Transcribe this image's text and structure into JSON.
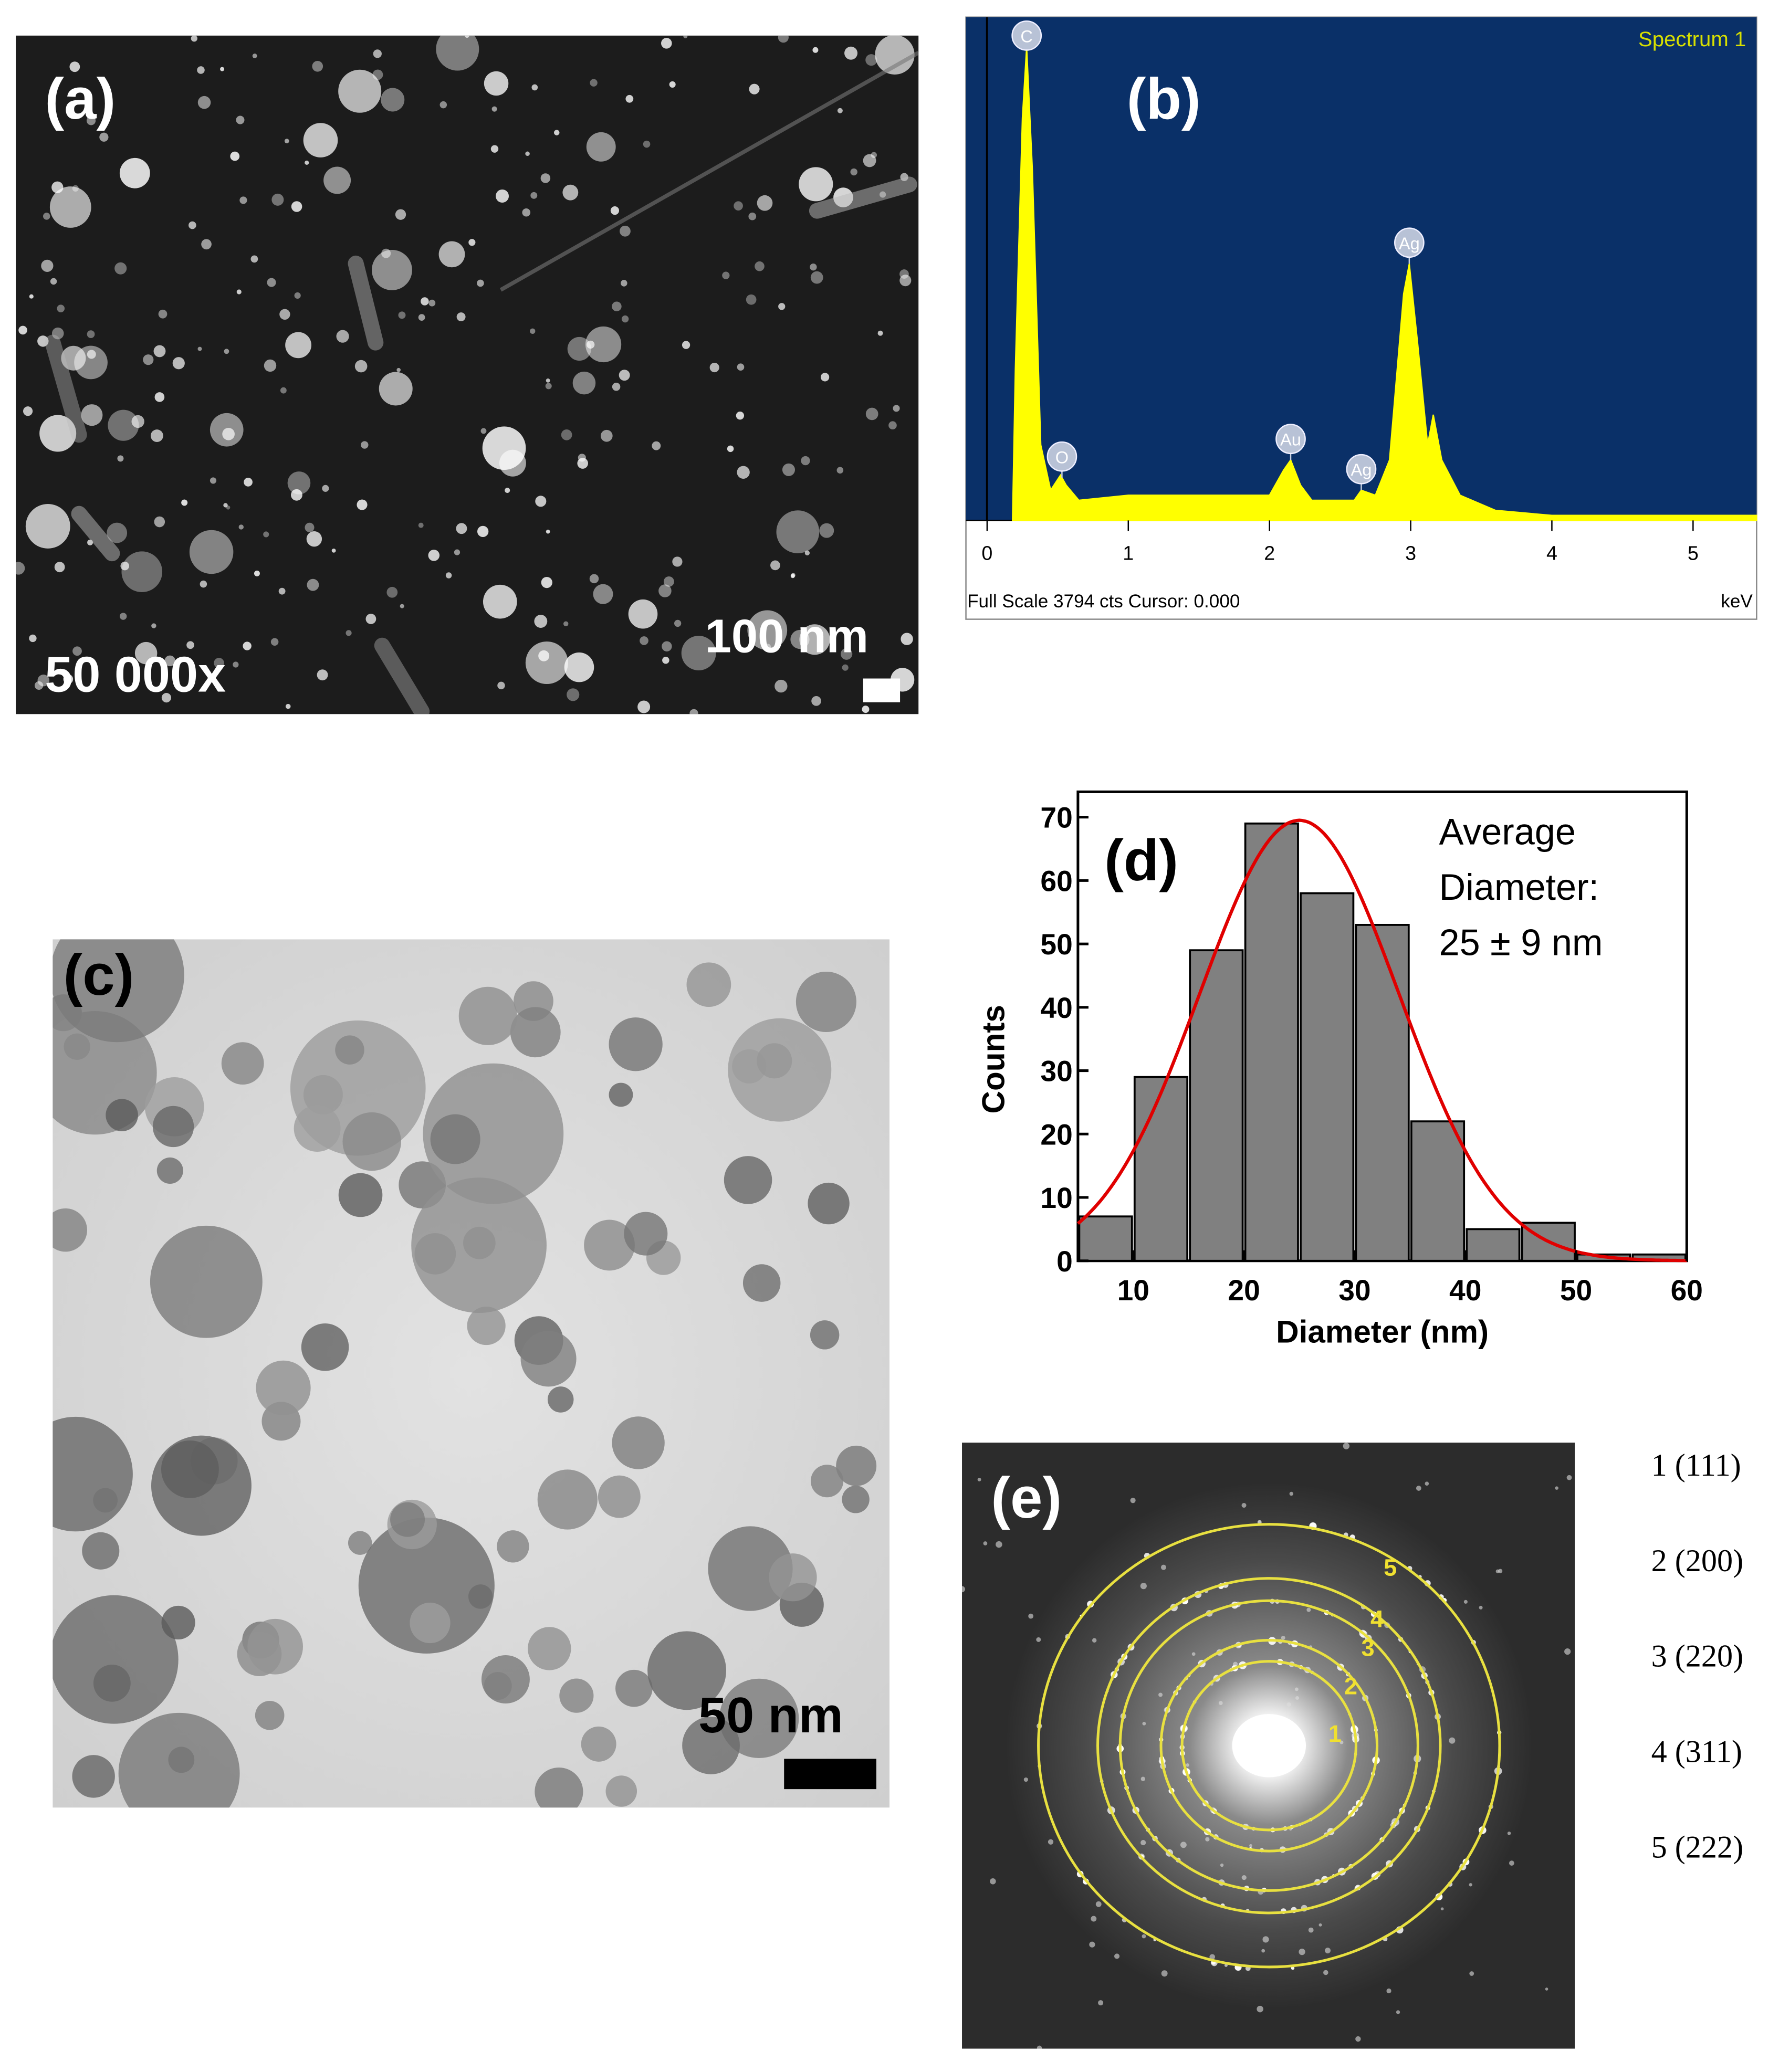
{
  "panels": {
    "a": {
      "label": "(a)",
      "magnification": "50 000x",
      "scale_bar": "100 nm"
    },
    "c": {
      "label": "(c)",
      "scale_bar": "50 nm"
    },
    "e": {
      "label": "(e)",
      "ring_labels": [
        "1",
        "2",
        "3",
        "4",
        "5"
      ],
      "legend": [
        "1 (111)",
        "2 (200)",
        "3 (220)",
        "4 (311)",
        "5 (222)"
      ]
    }
  },
  "chart_data": [
    {
      "type": "area",
      "panel_label": "(b)",
      "title": "Spectrum 1",
      "footer": "Full Scale 3794 cts Cursor: 0.000",
      "x_unit": "keV",
      "x": [
        0.18,
        0.2,
        0.25,
        0.28,
        0.32,
        0.38,
        0.45,
        0.52,
        0.56,
        0.65,
        1.0,
        1.5,
        2.0,
        2.1,
        2.15,
        2.22,
        2.3,
        2.6,
        2.65,
        2.75,
        2.85,
        2.95,
        2.99,
        3.05,
        3.12,
        3.16,
        3.22,
        3.35,
        3.6,
        4.0,
        5.45
      ],
      "values": [
        0,
        30,
        80,
        94,
        70,
        15,
        6,
        9,
        7,
        4,
        5,
        5,
        5,
        10,
        12,
        7,
        4,
        4,
        6,
        5,
        12,
        45,
        51,
        35,
        15,
        21,
        12,
        5,
        2,
        1,
        1
      ],
      "color": "#ffff00",
      "background": "#0a3068",
      "xlim": [
        -0.15,
        5.45
      ],
      "ylim": [
        0,
        100
      ],
      "xticks": [
        0,
        1,
        2,
        3,
        4,
        5
      ],
      "annotations": [
        {
          "text": "C",
          "x": 0.28
        },
        {
          "text": "O",
          "x": 0.53
        },
        {
          "text": "Au",
          "x": 2.15
        },
        {
          "text": "Ag",
          "x": 2.65
        },
        {
          "text": "Ag",
          "x": 2.99
        }
      ]
    },
    {
      "type": "histogram",
      "panel_label": "(d)",
      "bins": [
        5,
        10,
        15,
        20,
        25,
        30,
        35,
        40,
        45,
        50,
        55,
        60
      ],
      "values": [
        7,
        29,
        49,
        69,
        58,
        53,
        22,
        5,
        6,
        1,
        1
      ],
      "color": "#808080",
      "xlabel": "Diameter (nm)",
      "ylabel": "Counts",
      "xlim": [
        5,
        60
      ],
      "ylim": [
        0,
        74
      ],
      "xticks": [
        10,
        20,
        30,
        40,
        50,
        60
      ],
      "yticks": [
        0,
        10,
        20,
        30,
        40,
        50,
        60,
        70
      ],
      "annotation": [
        "Average",
        "Diameter:",
        "25 ± 9 nm"
      ],
      "fit": {
        "type": "gaussian",
        "mean": 25,
        "sd": 9,
        "peak": 69.5,
        "color": "#e00000"
      }
    }
  ]
}
